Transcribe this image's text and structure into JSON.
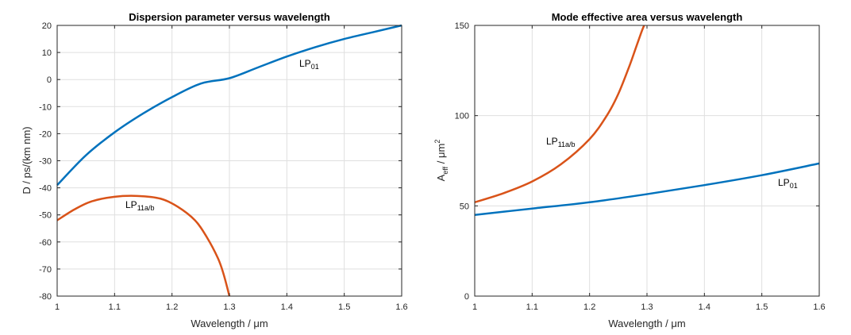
{
  "chart_data": [
    {
      "type": "line",
      "title": "Dispersion parameter versus wavelength",
      "xlabel": "Wavelength / μm",
      "ylabel": "D / ps/(km nm)",
      "xlim": [
        1,
        1.6
      ],
      "ylim": [
        -80,
        20
      ],
      "xticks": [
        "1",
        "1.1",
        "1.2",
        "1.3",
        "1.4",
        "1.5",
        "1.6"
      ],
      "yticks": [
        "-80",
        "-70",
        "-60",
        "-50",
        "-40",
        "-30",
        "-20",
        "-10",
        "0",
        "10",
        "20"
      ],
      "grid": true,
      "series": [
        {
          "name": "LP01",
          "label_main": "LP",
          "label_sub": "01",
          "color": "#0072BD",
          "x": [
            1.0,
            1.05,
            1.1,
            1.15,
            1.2,
            1.25,
            1.3,
            1.35,
            1.4,
            1.45,
            1.5,
            1.55,
            1.6
          ],
          "y": [
            -39,
            -28,
            -19.5,
            -12.5,
            -6.5,
            -1.5,
            0.5,
            4.5,
            8.5,
            12,
            15,
            17.5,
            20
          ]
        },
        {
          "name": "LP11a/b",
          "label_main": "LP",
          "label_sub": "11a/b",
          "color": "#D95319",
          "x": [
            1.0,
            1.03,
            1.06,
            1.1,
            1.14,
            1.18,
            1.21,
            1.24,
            1.26,
            1.28,
            1.29,
            1.3
          ],
          "y": [
            -52,
            -48,
            -45,
            -43.3,
            -43,
            -44,
            -47,
            -52,
            -58,
            -66,
            -72,
            -80
          ]
        }
      ]
    },
    {
      "type": "line",
      "title": "Mode effective area versus wavelength",
      "xlabel": "Wavelength / μm",
      "ylabel_main": "A",
      "ylabel_sub": "eff",
      "ylabel_rest": " / μm",
      "ylabel_sup": "2",
      "xlim": [
        1,
        1.6
      ],
      "ylim": [
        0,
        150
      ],
      "xticks": [
        "1",
        "1.1",
        "1.2",
        "1.3",
        "1.4",
        "1.5",
        "1.6"
      ],
      "yticks": [
        "0",
        "50",
        "100",
        "150"
      ],
      "grid": true,
      "series": [
        {
          "name": "LP01",
          "label_main": "LP",
          "label_sub": "01",
          "color": "#0072BD",
          "x": [
            1.0,
            1.1,
            1.2,
            1.3,
            1.4,
            1.5,
            1.6
          ],
          "y": [
            45,
            48.5,
            52,
            56.5,
            61.5,
            67,
            73.5
          ]
        },
        {
          "name": "LP11a/b",
          "label_main": "LP",
          "label_sub": "11a/b",
          "color": "#D95319",
          "x": [
            1.0,
            1.05,
            1.1,
            1.15,
            1.2,
            1.23,
            1.25,
            1.27,
            1.28,
            1.29,
            1.295
          ],
          "y": [
            52,
            57,
            63.5,
            73,
            87,
            100,
            112,
            128,
            137,
            146,
            150
          ]
        }
      ]
    }
  ]
}
